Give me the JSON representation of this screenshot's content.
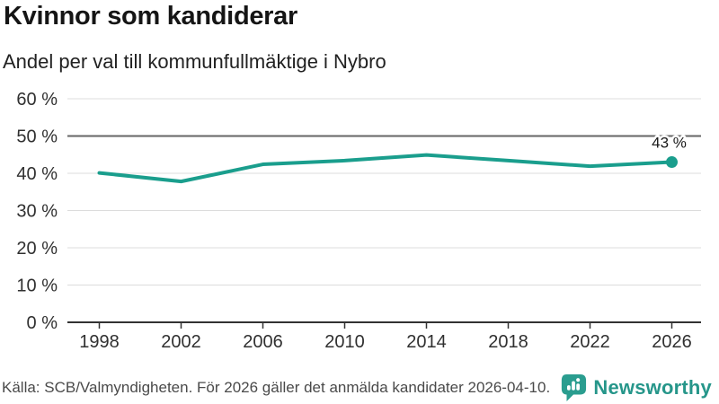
{
  "header": {
    "title": "Kvinnor som kandiderar",
    "subtitle": "Andel per val till kommunfullmäktige i Nybro"
  },
  "chart_data": {
    "type": "line",
    "title": "Kvinnor som kandiderar",
    "subtitle": "Andel per val till kommunfullmäktige i Nybro",
    "x": [
      1998,
      2002,
      2006,
      2010,
      2014,
      2018,
      2022,
      2026
    ],
    "values": [
      40.1,
      37.8,
      42.4,
      43.4,
      44.9,
      43.4,
      41.9,
      43
    ],
    "last_point_label": "43 %",
    "ylim": [
      0,
      60
    ],
    "y_ticks": [
      {
        "value": 0,
        "label": "0 %"
      },
      {
        "value": 10,
        "label": "10 %"
      },
      {
        "value": 20,
        "label": "20 %"
      },
      {
        "value": 30,
        "label": "30 %"
      },
      {
        "value": 40,
        "label": "40 %"
      },
      {
        "value": 50,
        "label": "50 %"
      },
      {
        "value": 60,
        "label": "60 %"
      }
    ],
    "reference_value": 50,
    "grid": true,
    "legend": "none",
    "colors": {
      "line": "#1a9e8d",
      "grid": "#dcdcdc",
      "reference_line": "#666666",
      "axis": "#333333",
      "tick_label": "#303030",
      "point_label": "#1a1a1a"
    }
  },
  "footer": {
    "source": "Källa: SCB/Valmyndigheten. För 2026 gäller det anmälda kandidater 2026-04-10.",
    "brand": "Newsworthy",
    "brand_color": "#2a9d8f"
  }
}
